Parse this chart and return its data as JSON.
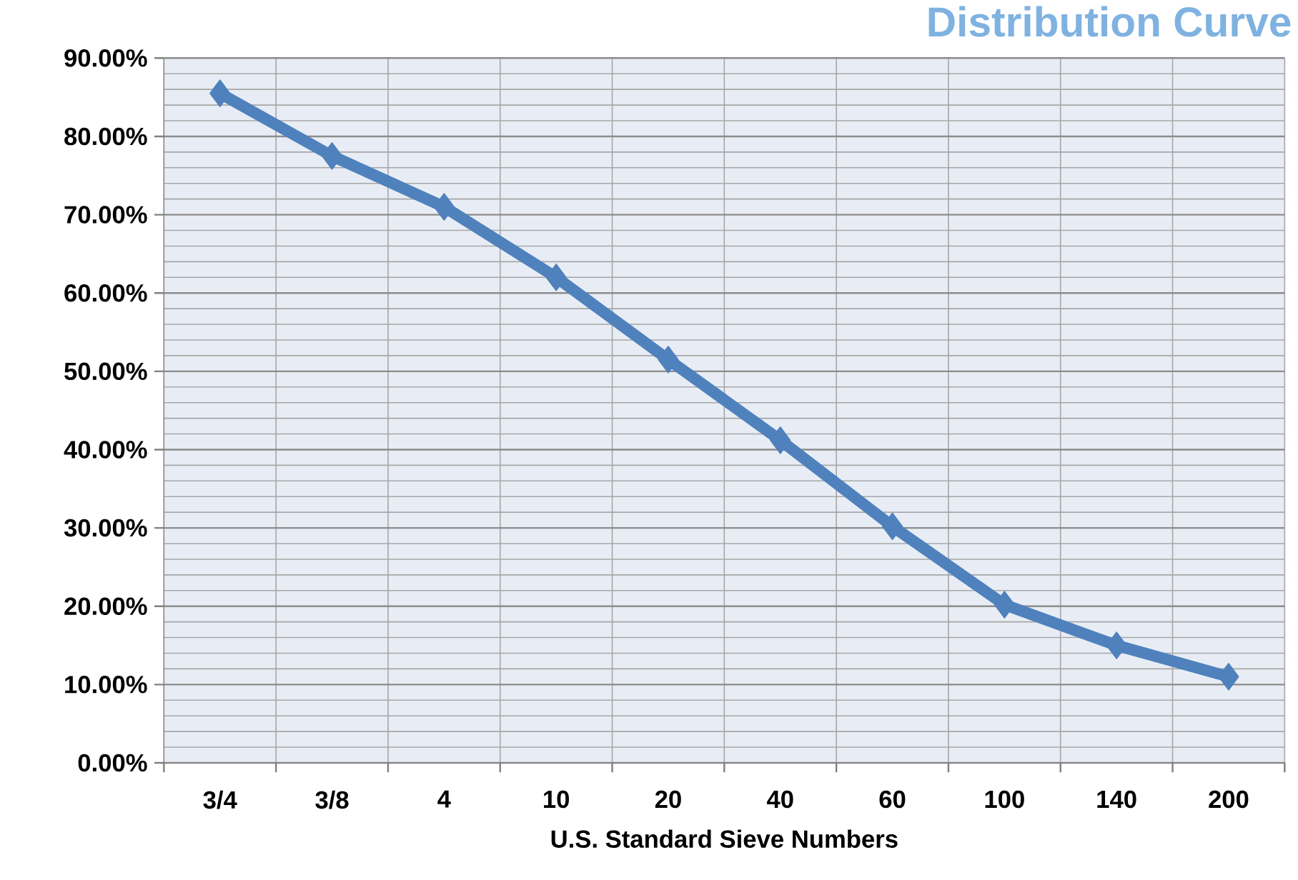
{
  "chart_data": {
    "type": "line",
    "title": "Distribution Curve",
    "xlabel": "U.S. Standard Sieve Numbers",
    "categories": [
      "3/4",
      "3/8",
      "4",
      "10",
      "20",
      "40",
      "60",
      "100",
      "140",
      "200"
    ],
    "series": [
      {
        "color": "#4f81bd",
        "values": [
          85.5,
          77.5,
          71,
          62,
          51.5,
          41.2,
          30.2,
          20.2,
          15,
          11
        ]
      }
    ],
    "ylim": [
      0,
      90
    ],
    "yticks": [
      {
        "value": 0,
        "label": "0.00%"
      },
      {
        "value": 10,
        "label": "10.00%"
      },
      {
        "value": 20,
        "label": "20.00%"
      },
      {
        "value": 30,
        "label": "30.00%"
      },
      {
        "value": 40,
        "label": "40.00%"
      },
      {
        "value": 50,
        "label": "50.00%"
      },
      {
        "value": 60,
        "label": "60.00%"
      },
      {
        "value": 70,
        "label": "70.00%"
      },
      {
        "value": 80,
        "label": "80.00%"
      },
      {
        "value": 90,
        "label": "90.00%"
      }
    ],
    "grid": true,
    "marker": "diamond",
    "line_style": "solid"
  }
}
